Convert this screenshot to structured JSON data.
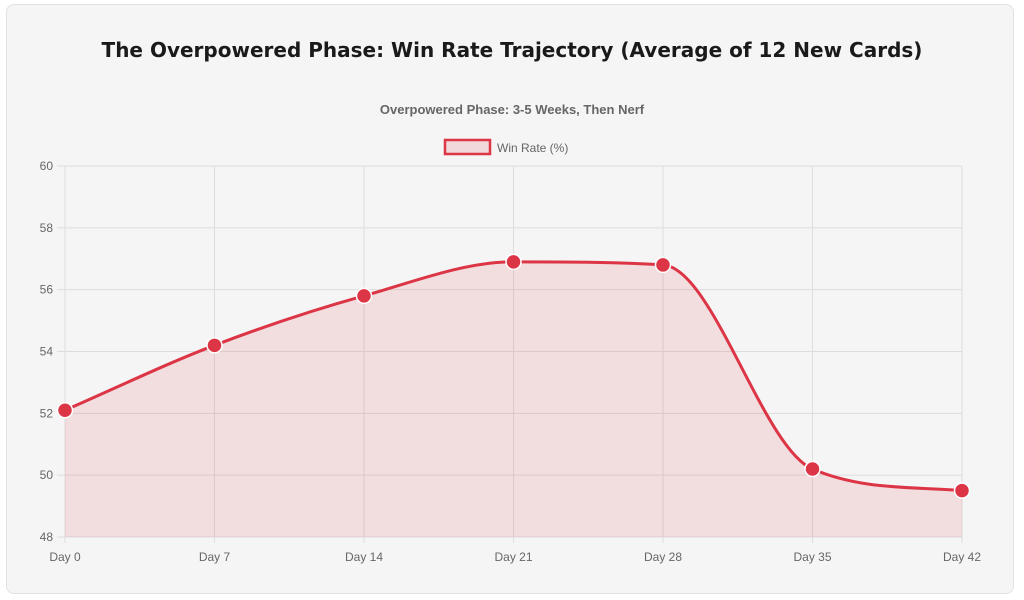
{
  "page": {
    "title": "The Overpowered Phase: Win Rate Trajectory (Average of 12 New Cards)"
  },
  "colors": {
    "line": "#dc3545",
    "fill": "rgba(220,53,69,0.12)",
    "grid": "#dddddd",
    "axis_text": "#666666"
  },
  "chart_data": {
    "type": "line",
    "title": "Overpowered Phase: 3-5 Weeks, Then Nerf",
    "categories": [
      "Day 0",
      "Day 7",
      "Day 14",
      "Day 21",
      "Day 28",
      "Day 35",
      "Day 42"
    ],
    "series": [
      {
        "name": "Win Rate (%)",
        "values": [
          52.1,
          54.2,
          55.8,
          56.9,
          56.8,
          50.2,
          49.5
        ],
        "fill": true
      }
    ],
    "ylim": [
      48,
      60
    ],
    "yticks": [
      48,
      50,
      52,
      54,
      56,
      58,
      60
    ],
    "xlabel": "",
    "ylabel": "",
    "grid": true,
    "legend": "top-center"
  }
}
